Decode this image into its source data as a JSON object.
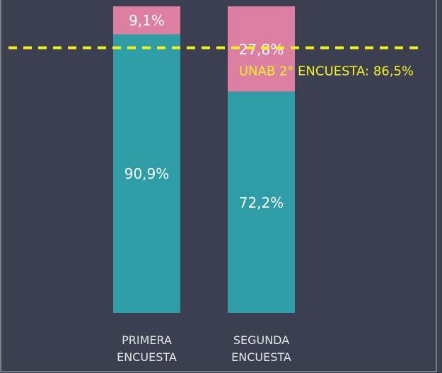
{
  "chart_data": {
    "type": "stacked-bar",
    "categories": [
      "PRIMERA ENCUESTA",
      "SEGUNDA ENCUESTA"
    ],
    "series": [
      {
        "color": "#2f9da6",
        "values": [
          90.9,
          72.2
        ],
        "value_labels": [
          "90,9%",
          "72,2%"
        ]
      },
      {
        "color": "#dc7fa1",
        "values": [
          9.1,
          27.8
        ],
        "value_labels": [
          "9,1%",
          "27,8%"
        ]
      }
    ],
    "ylim": [
      0,
      100
    ],
    "reference_line": {
      "value": 86.5,
      "label": "UNAB 2° ENCUESTA: 86,5%",
      "color": "#f2f21e"
    }
  }
}
